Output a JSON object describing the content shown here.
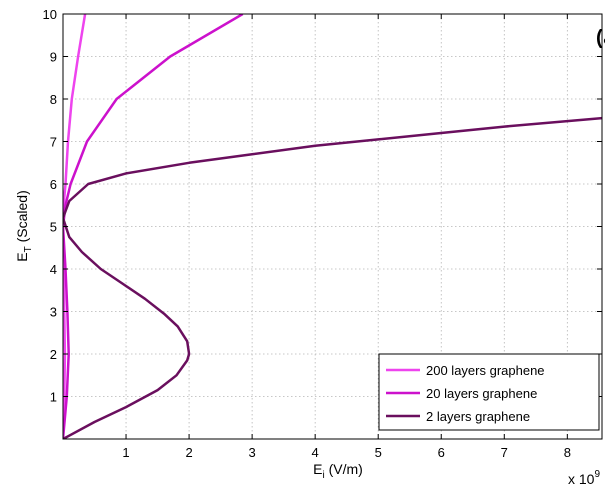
{
  "chart_data": {
    "type": "line",
    "xlabel": "E",
    "xlabel_sub": "i",
    "xlabel_unit": " (V/m)",
    "ylabel": "E",
    "ylabel_sub": "T",
    "ylabel_unit": " (Scaled)",
    "x_multiplier": "x 10",
    "x_multiplier_exp": "9",
    "panel_label": "(الف)",
    "xlim": [
      0,
      8.55
    ],
    "ylim": [
      0,
      10
    ],
    "x_ticks": [
      1,
      2,
      3,
      4,
      5,
      6,
      7,
      8
    ],
    "y_ticks": [
      1,
      2,
      3,
      4,
      5,
      6,
      7,
      8,
      9,
      10
    ],
    "grid": true,
    "legend_position": "bottom-right",
    "series": [
      {
        "name": "200 layers graphene",
        "color": "#ee44ee",
        "points": [
          [
            0,
            0
          ],
          [
            0.02,
            1
          ],
          [
            0.03,
            2
          ],
          [
            0.02,
            3
          ],
          [
            0.01,
            4
          ],
          [
            0,
            5
          ],
          [
            0.01,
            5.5
          ],
          [
            0.04,
            6
          ],
          [
            0.08,
            7
          ],
          [
            0.14,
            8
          ],
          [
            0.24,
            9
          ],
          [
            0.35,
            10
          ]
        ]
      },
      {
        "name": "20 layers graphene",
        "color": "#cc11cc",
        "points": [
          [
            0,
            0
          ],
          [
            0.06,
            1
          ],
          [
            0.09,
            2
          ],
          [
            0.07,
            3
          ],
          [
            0.04,
            4
          ],
          [
            0,
            5
          ],
          [
            0.04,
            5.5
          ],
          [
            0.12,
            6
          ],
          [
            0.38,
            7
          ],
          [
            0.85,
            8
          ],
          [
            1.7,
            9
          ],
          [
            2.85,
            10
          ]
        ]
      },
      {
        "name": "2 layers graphene",
        "color": "#6a0f5e",
        "points": [
          [
            0,
            0
          ],
          [
            0.5,
            0.4
          ],
          [
            1.0,
            0.75
          ],
          [
            1.5,
            1.15
          ],
          [
            1.8,
            1.5
          ],
          [
            1.97,
            1.85
          ],
          [
            2.0,
            2.0
          ],
          [
            1.97,
            2.3
          ],
          [
            1.82,
            2.65
          ],
          [
            1.6,
            2.95
          ],
          [
            1.3,
            3.3
          ],
          [
            0.95,
            3.65
          ],
          [
            0.6,
            4.0
          ],
          [
            0.3,
            4.4
          ],
          [
            0.1,
            4.75
          ],
          [
            0,
            5.2
          ],
          [
            0.1,
            5.6
          ],
          [
            0.4,
            6.0
          ],
          [
            1.0,
            6.25
          ],
          [
            2.0,
            6.5
          ],
          [
            3.0,
            6.7
          ],
          [
            4.0,
            6.9
          ],
          [
            5.0,
            7.05
          ],
          [
            6.0,
            7.2
          ],
          [
            7.0,
            7.35
          ],
          [
            8.0,
            7.48
          ],
          [
            8.55,
            7.55
          ]
        ]
      }
    ]
  }
}
